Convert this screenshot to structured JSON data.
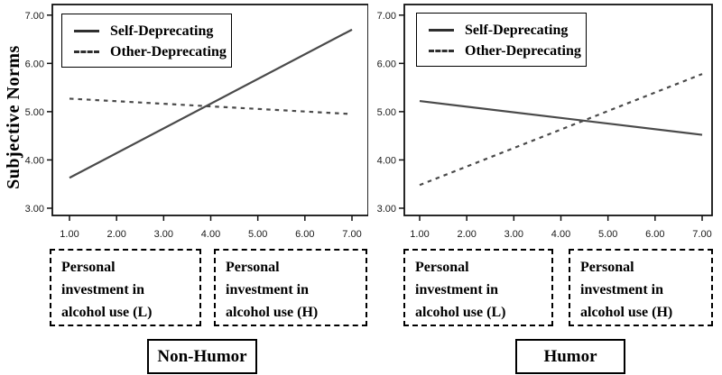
{
  "figure": {
    "ylabel": "Subjective Norms"
  },
  "colors": {
    "line": "#4a4a4a",
    "axis": "#111111",
    "tick_text": "#1a1a1a",
    "text": "#000000",
    "background": "#ffffff"
  },
  "chart_data": [
    {
      "type": "line",
      "title": "Non-Humor",
      "xlabel": "",
      "ylabel": "Subjective Norms",
      "xticks": [
        "1.00",
        "2.00",
        "3.00",
        "4.00",
        "5.00",
        "6.00",
        "7.00"
      ],
      "yticks": [
        "3.00",
        "4.00",
        "5.00",
        "6.00",
        "7.00"
      ],
      "xlim": [
        0.64,
        7.35
      ],
      "ylim": [
        2.85,
        7.22
      ],
      "grid": false,
      "legend_position": "top-left",
      "series": [
        {
          "name": "Self-Deprecating",
          "style": "solid",
          "x": [
            1,
            7
          ],
          "values": [
            3.63,
            6.7
          ]
        },
        {
          "name": "Other-Deprecating",
          "style": "dashed",
          "x": [
            1,
            7
          ],
          "values": [
            5.27,
            4.95
          ]
        }
      ],
      "annotation_boxes": [
        "Personal\ninvestment in\nalcohol use (L)",
        "Personal\ninvestment in\nalcohol use (H)"
      ]
    },
    {
      "type": "line",
      "title": "Humor",
      "xlabel": "",
      "ylabel": "Subjective Norms",
      "xticks": [
        "1.00",
        "2.00",
        "3.00",
        "4.00",
        "5.00",
        "6.00",
        "7.00"
      ],
      "yticks": [
        "3.00",
        "4.00",
        "5.00",
        "6.00",
        "7.00"
      ],
      "xlim": [
        0.64,
        7.35
      ],
      "ylim": [
        2.85,
        7.22
      ],
      "grid": false,
      "legend_position": "top-left",
      "series": [
        {
          "name": "Self-Deprecating",
          "style": "solid",
          "x": [
            1,
            7
          ],
          "values": [
            5.22,
            4.52
          ]
        },
        {
          "name": "Other-Deprecating",
          "style": "dashed",
          "x": [
            1,
            7
          ],
          "values": [
            3.48,
            5.78
          ]
        }
      ],
      "annotation_boxes": [
        "Personal\ninvestment in\nalcohol use (L)",
        "Personal\ninvestment in\nalcohol use (H)"
      ]
    }
  ]
}
